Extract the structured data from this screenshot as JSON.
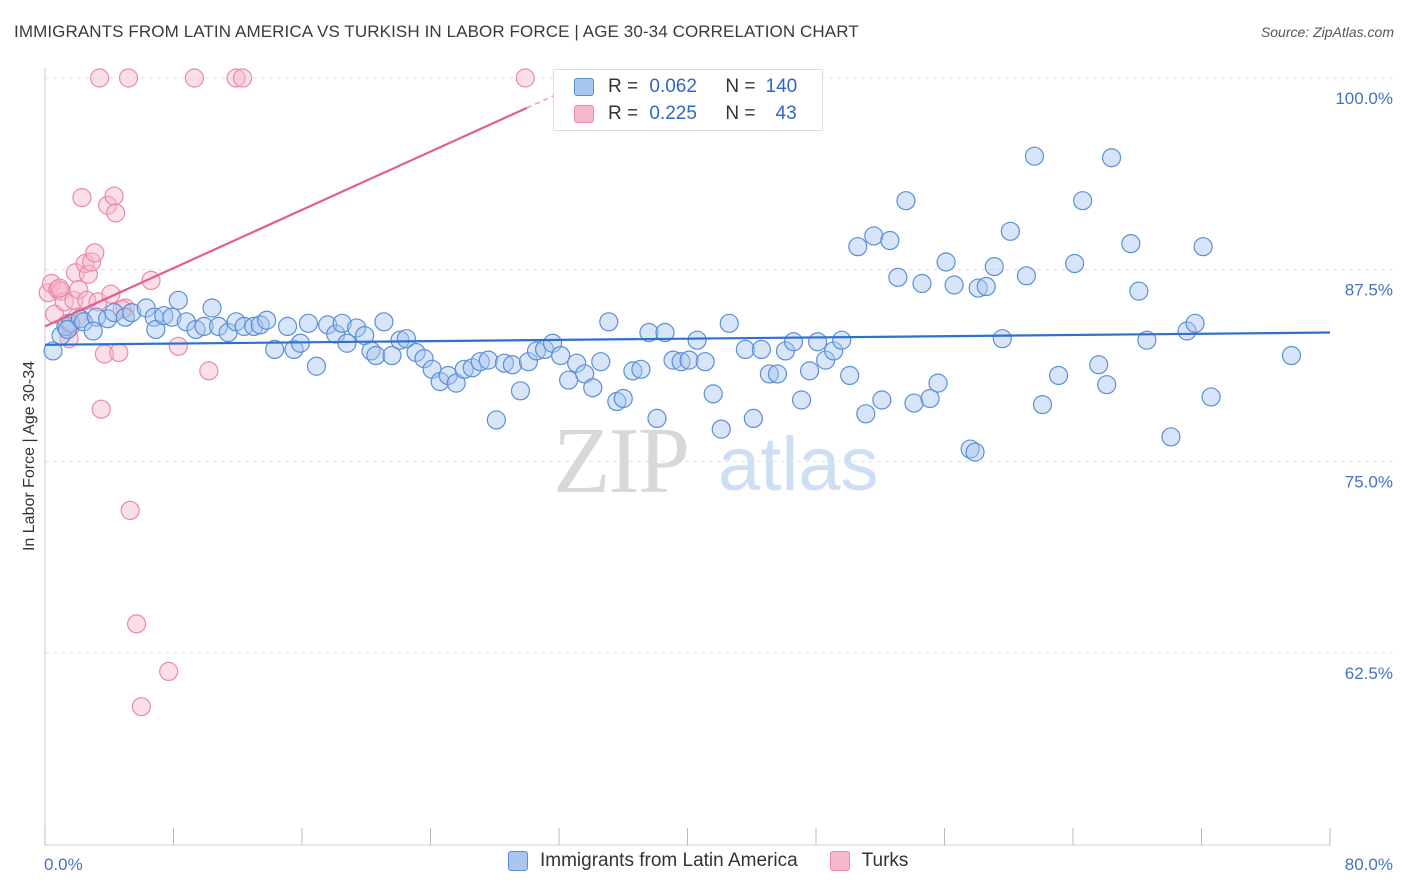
{
  "title": "IMMIGRANTS FROM LATIN AMERICA VS TURKISH IN LABOR FORCE | AGE 30-34 CORRELATION CHART",
  "source": "Source: ZipAtlas.com",
  "watermark": {
    "zip": "ZIP",
    "atlas": "atlas"
  },
  "legend": {
    "series1": {
      "r_label": "R =",
      "r_value": "0.062",
      "n_label": "N =",
      "n_value": "140"
    },
    "series2": {
      "r_label": "R =",
      "r_value": "0.225",
      "n_label": "N =",
      "n_value": "43"
    }
  },
  "colors": {
    "blue_fill": "#a9c6f0",
    "blue_stroke": "#5b8fd6",
    "blue_line": "#2f6fce",
    "pink_fill": "#f7b8cb",
    "pink_stroke": "#e88aa8",
    "pink_line": "#e0608a",
    "axis_label": "#4472c4",
    "grid": "#e0e0e0"
  },
  "chart_data": {
    "type": "scatter",
    "title": "IMMIGRANTS FROM LATIN AMERICA VS TURKISH IN LABOR FORCE | AGE 30-34 CORRELATION CHART",
    "xlabel": "",
    "ylabel": "In Labor Force | Age 30-34",
    "xlim": [
      0,
      80
    ],
    "ylim": [
      50,
      101
    ],
    "x_tick_labels": [
      "0.0%",
      "80.0%"
    ],
    "y_ticks": [
      62.5,
      75.0,
      87.5,
      100.0
    ],
    "y_tick_labels": [
      "62.5%",
      "75.0%",
      "87.5%",
      "100.0%"
    ],
    "grid": true,
    "legend_position": "bottom",
    "series": [
      {
        "name": "Immigrants from Latin America",
        "color": "#a9c6f0",
        "trend": {
          "x": [
            0,
            80
          ],
          "y": [
            82.6,
            83.4
          ]
        },
        "points": [
          [
            0.5,
            82.2
          ],
          [
            1.0,
            83.2
          ],
          [
            1.3,
            83.8
          ],
          [
            1.6,
            84.0
          ],
          [
            2.2,
            84.3
          ],
          [
            2.4,
            84.1
          ],
          [
            3.2,
            84.4
          ],
          [
            3.9,
            84.3
          ],
          [
            4.3,
            84.7
          ],
          [
            5.0,
            84.4
          ],
          [
            5.4,
            84.7
          ],
          [
            6.3,
            85.0
          ],
          [
            6.8,
            84.4
          ],
          [
            6.9,
            83.6
          ],
          [
            7.4,
            84.5
          ],
          [
            7.9,
            84.4
          ],
          [
            8.3,
            85.5
          ],
          [
            8.8,
            84.1
          ],
          [
            9.4,
            83.6
          ],
          [
            9.9,
            83.8
          ],
          [
            10.4,
            85.0
          ],
          [
            10.8,
            83.8
          ],
          [
            11.4,
            83.4
          ],
          [
            11.9,
            84.1
          ],
          [
            12.4,
            83.8
          ],
          [
            13.0,
            83.8
          ],
          [
            13.4,
            83.9
          ],
          [
            13.8,
            84.2
          ],
          [
            14.3,
            82.3
          ],
          [
            15.1,
            83.8
          ],
          [
            15.5,
            82.3
          ],
          [
            15.9,
            82.7
          ],
          [
            16.4,
            84.0
          ],
          [
            16.9,
            81.2
          ],
          [
            17.6,
            83.9
          ],
          [
            18.1,
            83.3
          ],
          [
            18.5,
            84.0
          ],
          [
            18.8,
            82.7
          ],
          [
            19.4,
            83.7
          ],
          [
            19.9,
            83.2
          ],
          [
            20.3,
            82.2
          ],
          [
            20.6,
            81.9
          ],
          [
            21.1,
            84.1
          ],
          [
            21.6,
            81.9
          ],
          [
            22.1,
            82.9
          ],
          [
            22.5,
            83.0
          ],
          [
            23.1,
            82.1
          ],
          [
            23.6,
            81.7
          ],
          [
            24.1,
            81.0
          ],
          [
            24.6,
            80.2
          ],
          [
            25.1,
            80.6
          ],
          [
            25.6,
            80.1
          ],
          [
            26.1,
            81.0
          ],
          [
            26.6,
            81.1
          ],
          [
            27.1,
            81.5
          ],
          [
            27.6,
            81.6
          ],
          [
            28.1,
            77.7
          ],
          [
            28.6,
            81.4
          ],
          [
            29.1,
            81.3
          ],
          [
            29.6,
            79.6
          ],
          [
            30.1,
            81.5
          ],
          [
            30.6,
            82.2
          ],
          [
            31.1,
            82.3
          ],
          [
            31.6,
            82.7
          ],
          [
            32.1,
            81.9
          ],
          [
            32.6,
            80.3
          ],
          [
            33.1,
            81.4
          ],
          [
            33.6,
            80.7
          ],
          [
            34.1,
            79.8
          ],
          [
            34.6,
            81.5
          ],
          [
            35.1,
            84.1
          ],
          [
            35.6,
            78.9
          ],
          [
            36.0,
            79.1
          ],
          [
            36.6,
            80.9
          ],
          [
            37.1,
            81.0
          ],
          [
            37.6,
            83.4
          ],
          [
            38.1,
            77.8
          ],
          [
            38.6,
            83.4
          ],
          [
            39.1,
            81.6
          ],
          [
            39.6,
            81.5
          ],
          [
            40.1,
            81.6
          ],
          [
            40.6,
            82.9
          ],
          [
            41.1,
            81.5
          ],
          [
            41.6,
            79.4
          ],
          [
            42.1,
            77.1
          ],
          [
            42.6,
            84.0
          ],
          [
            43.6,
            82.3
          ],
          [
            44.1,
            77.8
          ],
          [
            44.6,
            82.3
          ],
          [
            45.1,
            80.7
          ],
          [
            45.6,
            80.7
          ],
          [
            46.1,
            82.2
          ],
          [
            46.6,
            82.8
          ],
          [
            47.1,
            79.0
          ],
          [
            47.6,
            80.9
          ],
          [
            48.1,
            82.8
          ],
          [
            48.6,
            81.6
          ],
          [
            49.1,
            82.2
          ],
          [
            49.6,
            82.9
          ],
          [
            50.1,
            80.6
          ],
          [
            50.6,
            89.0
          ],
          [
            51.1,
            78.1
          ],
          [
            51.6,
            89.7
          ],
          [
            52.1,
            79.0
          ],
          [
            52.6,
            89.4
          ],
          [
            53.1,
            87.0
          ],
          [
            53.6,
            92.0
          ],
          [
            54.1,
            78.8
          ],
          [
            54.6,
            86.6
          ],
          [
            55.1,
            79.1
          ],
          [
            55.6,
            80.1
          ],
          [
            56.1,
            88.0
          ],
          [
            56.6,
            86.5
          ],
          [
            57.6,
            75.8
          ],
          [
            57.9,
            75.6
          ],
          [
            58.1,
            86.3
          ],
          [
            58.6,
            86.4
          ],
          [
            59.1,
            87.7
          ],
          [
            59.6,
            83.0
          ],
          [
            60.1,
            90.0
          ],
          [
            61.1,
            87.1
          ],
          [
            61.6,
            94.9
          ],
          [
            62.1,
            78.7
          ],
          [
            63.1,
            80.6
          ],
          [
            64.1,
            87.9
          ],
          [
            64.6,
            92.0
          ],
          [
            65.6,
            81.3
          ],
          [
            66.1,
            80.0
          ],
          [
            66.4,
            94.8
          ],
          [
            67.6,
            89.2
          ],
          [
            68.1,
            86.1
          ],
          [
            68.6,
            82.9
          ],
          [
            70.1,
            76.6
          ],
          [
            71.1,
            83.5
          ],
          [
            71.6,
            84.0
          ],
          [
            72.1,
            89.0
          ],
          [
            72.6,
            79.2
          ],
          [
            77.6,
            81.9
          ],
          [
            1.4,
            83.6
          ],
          [
            3.0,
            83.5
          ]
        ]
      },
      {
        "name": "Turks",
        "color": "#f7b8cb",
        "trend": {
          "x": [
            0,
            32
          ],
          "y": [
            83.8,
            99.0
          ]
        },
        "points": [
          [
            0.2,
            86.0
          ],
          [
            0.4,
            86.6
          ],
          [
            0.6,
            84.6
          ],
          [
            0.8,
            86.2
          ],
          [
            1.0,
            86.1
          ],
          [
            1.2,
            85.4
          ],
          [
            1.4,
            84.0
          ],
          [
            1.5,
            83.0
          ],
          [
            1.6,
            83.8
          ],
          [
            1.8,
            85.5
          ],
          [
            1.9,
            87.3
          ],
          [
            2.1,
            86.2
          ],
          [
            2.3,
            92.2
          ],
          [
            2.5,
            87.9
          ],
          [
            2.6,
            85.5
          ],
          [
            2.7,
            87.2
          ],
          [
            2.9,
            88.0
          ],
          [
            3.1,
            88.6
          ],
          [
            3.3,
            85.4
          ],
          [
            3.5,
            78.4
          ],
          [
            3.7,
            82.0
          ],
          [
            3.9,
            91.7
          ],
          [
            4.1,
            85.9
          ],
          [
            4.3,
            92.3
          ],
          [
            4.4,
            91.2
          ],
          [
            4.6,
            82.1
          ],
          [
            5.0,
            85.0
          ],
          [
            5.3,
            71.8
          ],
          [
            5.7,
            64.4
          ],
          [
            6.6,
            86.8
          ],
          [
            6.0,
            59.0
          ],
          [
            7.7,
            61.3
          ],
          [
            8.3,
            82.5
          ],
          [
            10.2,
            80.9
          ],
          [
            3.4,
            100.0
          ],
          [
            5.2,
            100.0
          ],
          [
            9.3,
            100.0
          ],
          [
            11.9,
            100.0
          ],
          [
            12.3,
            100.0
          ],
          [
            29.9,
            100.0
          ],
          [
            0.9,
            86.3
          ],
          [
            2.0,
            84.4
          ],
          [
            4.8,
            84.9
          ]
        ]
      }
    ]
  }
}
